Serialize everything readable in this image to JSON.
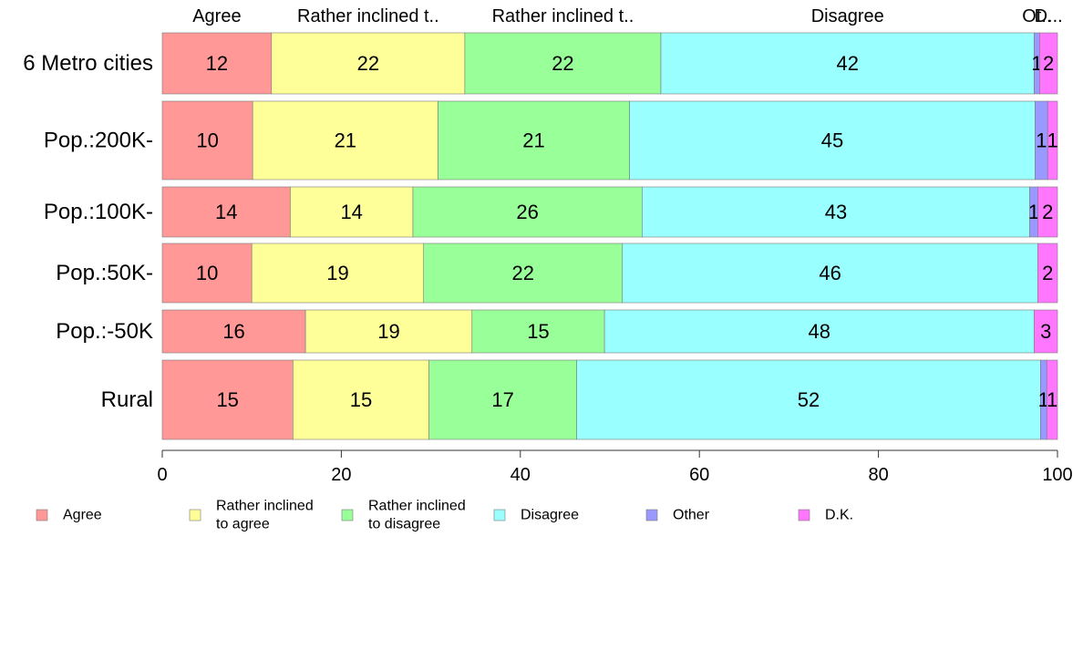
{
  "chart_data": {
    "type": "bar",
    "orientation": "horizontal",
    "stacked": true,
    "categories": [
      "6 Metro cities",
      "Pop.:200K-",
      "Pop.:100K-",
      "Pop.:50K-",
      "Pop.:-50K",
      "Rural"
    ],
    "series": [
      {
        "name": "Agree",
        "legend": [
          "Agree"
        ],
        "top_label": "Agree",
        "color": "#ff9896",
        "values": [
          12.2,
          10.1,
          14.3,
          10.0,
          16.0,
          14.6
        ]
      },
      {
        "name": "Rather inclined to agree",
        "legend": [
          "Rather inclined",
          "to agree"
        ],
        "top_label": "Rather inclined t..",
        "color": "#ffff99",
        "values": [
          21.6,
          20.7,
          13.7,
          19.2,
          18.6,
          15.2
        ]
      },
      {
        "name": "Rather inclined to disagree",
        "legend": [
          "Rather inclined",
          "to disagree"
        ],
        "top_label": "Rather inclined t..",
        "color": "#99ff99",
        "values": [
          21.9,
          21.4,
          25.6,
          22.2,
          14.8,
          16.5
        ]
      },
      {
        "name": "Disagree",
        "legend": [
          "Disagree"
        ],
        "top_label": "Disagree",
        "color": "#99ffff",
        "values": [
          41.7,
          45.3,
          43.3,
          46.4,
          48.0,
          51.8
        ]
      },
      {
        "name": "Other",
        "legend": [
          "Other"
        ],
        "top_label": "Ot..",
        "color": "#9999ff",
        "values": [
          0.6,
          1.4,
          0.9,
          0.0,
          0.0,
          0.7
        ]
      },
      {
        "name": "D.K.",
        "legend": [
          "D.K."
        ],
        "top_label": "D...",
        "color": "#ff77ff",
        "values": [
          2.0,
          1.1,
          2.2,
          2.2,
          2.6,
          1.2
        ]
      }
    ],
    "data_labels": [
      [
        "12",
        "22",
        "22",
        "42",
        "1",
        "2"
      ],
      [
        "10",
        "21",
        "21",
        "45",
        "1",
        "1"
      ],
      [
        "14",
        "14",
        "26",
        "43",
        "1",
        "2"
      ],
      [
        "10",
        "19",
        "22",
        "46",
        "",
        "2"
      ],
      [
        "16",
        "19",
        "15",
        "48",
        "",
        "3"
      ],
      [
        "15",
        "15",
        "17",
        "52",
        "1",
        "1"
      ]
    ],
    "xlim": [
      0,
      100
    ],
    "xticks": [
      0,
      20,
      40,
      60,
      80,
      100
    ],
    "xlabel": "",
    "ylabel": "",
    "title": "",
    "grid": false,
    "legend_position": "bottom"
  }
}
